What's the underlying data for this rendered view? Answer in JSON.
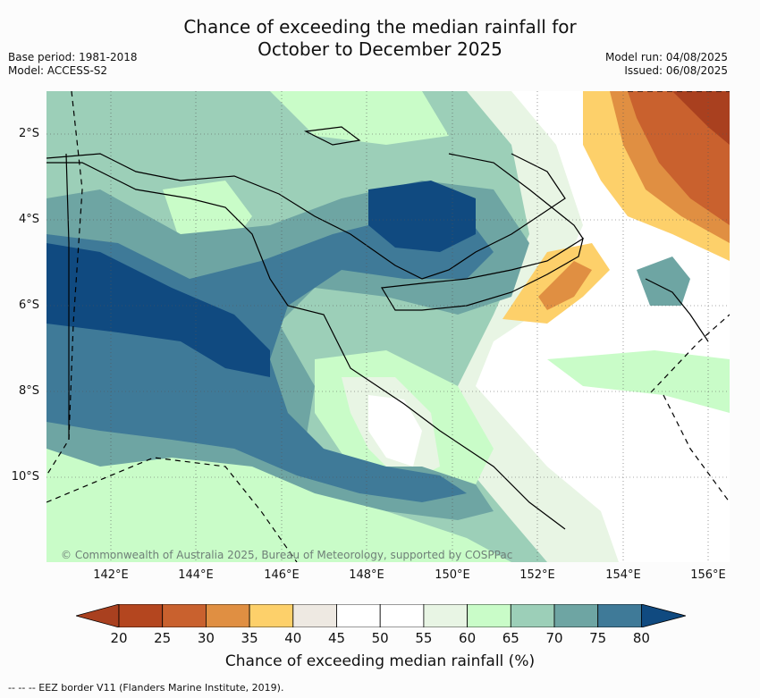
{
  "title_line1": "Chance of exceeding the median rainfall for",
  "title_line2": "October to December 2025",
  "base_period": "Base period: 1981-2018",
  "model": "Model: ACCESS-S2",
  "model_run": "Model run: 04/08/2025",
  "issued": "Issued: 06/08/2025",
  "credit": "© Commonwealth of Australia 2025, Bureau of Meteorology, supported by COSPPac",
  "x_ticks": [
    "142°E",
    "144°E",
    "146°E",
    "148°E",
    "150°E",
    "152°E",
    "154°E",
    "156°E"
  ],
  "y_ticks": [
    "2°S",
    "4°S",
    "6°S",
    "8°S",
    "10°S"
  ],
  "colorbar": {
    "title": "Chance of exceeding median rainfall (%)",
    "labels": [
      "20",
      "25",
      "30",
      "35",
      "40",
      "45",
      "50",
      "55",
      "60",
      "65",
      "70",
      "75",
      "80"
    ],
    "colors": [
      "#a9401f",
      "#b4461f",
      "#c9612e",
      "#e08f42",
      "#fdd06a",
      "#eee9e2",
      "#ffffff",
      "#ffffff",
      "#e8f5e4",
      "#c9fcc8",
      "#9ccfb8",
      "#6ea5a3",
      "#3f7a98",
      "#104a80"
    ]
  },
  "eez_note": "--  --  -- EEZ border V11 (Flanders Marine Institute, 2019)."
}
